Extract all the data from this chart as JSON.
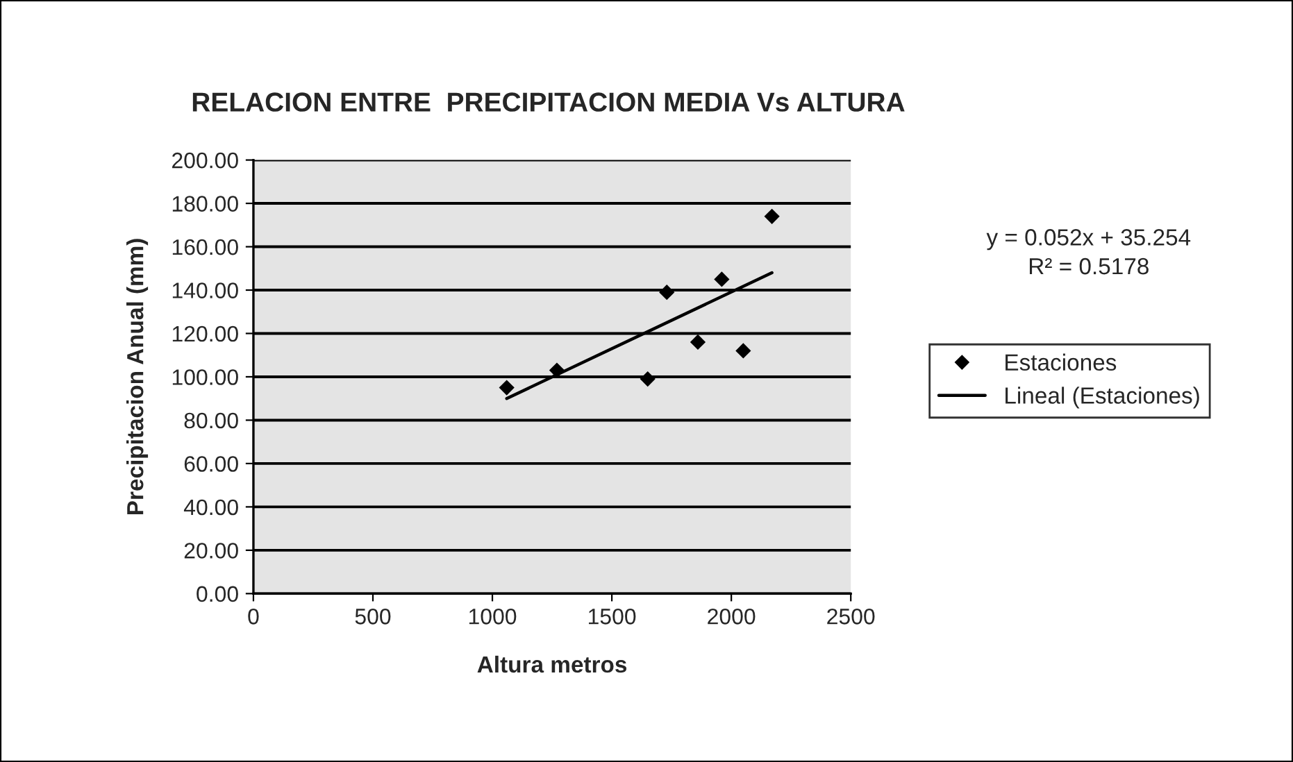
{
  "chart_data": {
    "type": "scatter",
    "title": "RELACION ENTRE  PRECIPITACION MEDIA Vs ALTURA",
    "xlabel": "Altura metros",
    "ylabel": "Precipitacion Anual (mm)",
    "series": [
      {
        "name": "Estaciones",
        "color": "#000000",
        "marker": "diamond",
        "x": [
          1060,
          1270,
          1650,
          1730,
          1860,
          1960,
          2050,
          2170
        ],
        "values": [
          95,
          103,
          99,
          139,
          116,
          145,
          112,
          174
        ]
      },
      {
        "name": "Lineal (Estaciones)",
        "type": "line",
        "color": "#000000",
        "marker": "none",
        "line_style": "solid",
        "x": [
          1060,
          2170
        ],
        "values": [
          90,
          148
        ]
      }
    ],
    "annotations": [
      "y = 0.052x + 35.254",
      "R² = 0.5178"
    ],
    "xlim": [
      0,
      2500
    ],
    "xticks": [
      0,
      500,
      1000,
      1500,
      2000,
      2500
    ],
    "ylim": [
      0,
      200
    ],
    "yticks": [
      {
        "value": 0,
        "label": "0.00"
      },
      {
        "value": 20,
        "label": "20.00"
      },
      {
        "value": 40,
        "label": "40.00"
      },
      {
        "value": 60,
        "label": "60.00"
      },
      {
        "value": 80,
        "label": "80.00"
      },
      {
        "value": 100,
        "label": "100.00"
      },
      {
        "value": 120,
        "label": "120.00"
      },
      {
        "value": 140,
        "label": "140.00"
      },
      {
        "value": 160,
        "label": "160.00"
      },
      {
        "value": 180,
        "label": "180.00"
      },
      {
        "value": 200,
        "label": "200.00"
      }
    ],
    "grid": "y",
    "legend": "right"
  }
}
